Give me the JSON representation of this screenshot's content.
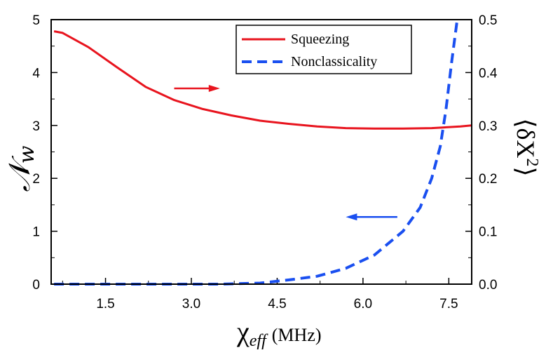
{
  "chart_data": {
    "type": "line",
    "xlabel": {
      "symbol": "χ",
      "subscript": "eff",
      "unit": "(MHz)"
    },
    "ylabel_left": {
      "symbol": "𝒩",
      "subscript": "w"
    },
    "ylabel_right": {
      "open": "⟨",
      "body": "δX",
      "sup": "2",
      "close": "⟩"
    },
    "xlim": [
      0.55,
      7.9
    ],
    "ylim_left": [
      0,
      5
    ],
    "ylim_right": [
      0,
      0.5
    ],
    "x_ticks": [
      1.5,
      3.0,
      4.5,
      6.0,
      7.5
    ],
    "x_tick_labels": [
      "1.5",
      "3.0",
      "4.5",
      "6.0",
      "7.5"
    ],
    "y_left_ticks": [
      0,
      1,
      2,
      3,
      4,
      5
    ],
    "y_left_tick_labels": [
      "0",
      "1",
      "2",
      "3",
      "4",
      "5"
    ],
    "y_right_ticks": [
      0,
      0.1,
      0.2,
      0.3,
      0.4,
      0.5
    ],
    "y_right_tick_labels": [
      "0.0",
      "0.1",
      "0.2",
      "0.3",
      "0.4",
      "0.5"
    ],
    "legend_position": "top-right",
    "series": [
      {
        "name": "Squeezing",
        "axis": "right",
        "color": "#e8141e",
        "style": "solid",
        "x": [
          0.6,
          0.75,
          1.2,
          1.7,
          2.2,
          2.7,
          3.2,
          3.7,
          4.2,
          4.7,
          5.2,
          5.7,
          6.2,
          6.7,
          7.2,
          7.7,
          7.9
        ],
        "y": [
          0.478,
          0.475,
          0.448,
          0.41,
          0.373,
          0.348,
          0.331,
          0.319,
          0.309,
          0.303,
          0.298,
          0.295,
          0.294,
          0.294,
          0.295,
          0.298,
          0.3
        ]
      },
      {
        "name": "Nonclassicality",
        "axis": "left",
        "color": "#1a4ff0",
        "style": "dashed",
        "x": [
          0.6,
          1.5,
          2.5,
          3.5,
          4.2,
          4.7,
          5.2,
          5.7,
          6.2,
          6.7,
          7.0,
          7.2,
          7.35,
          7.45,
          7.55,
          7.65
        ],
        "y": [
          0.0,
          0.0,
          0.0,
          0.0,
          0.02,
          0.08,
          0.15,
          0.3,
          0.55,
          1.0,
          1.45,
          2.0,
          2.6,
          3.3,
          4.2,
          5.1
        ]
      }
    ],
    "annotations": [
      {
        "kind": "arrow",
        "direction": "right",
        "color": "#e8141e",
        "x": [
          2.7,
          3.5
        ],
        "y_left": 3.7
      },
      {
        "kind": "arrow",
        "direction": "left",
        "color": "#1a4ff0",
        "x": [
          6.6,
          5.7
        ],
        "y_left": 1.27
      }
    ]
  }
}
